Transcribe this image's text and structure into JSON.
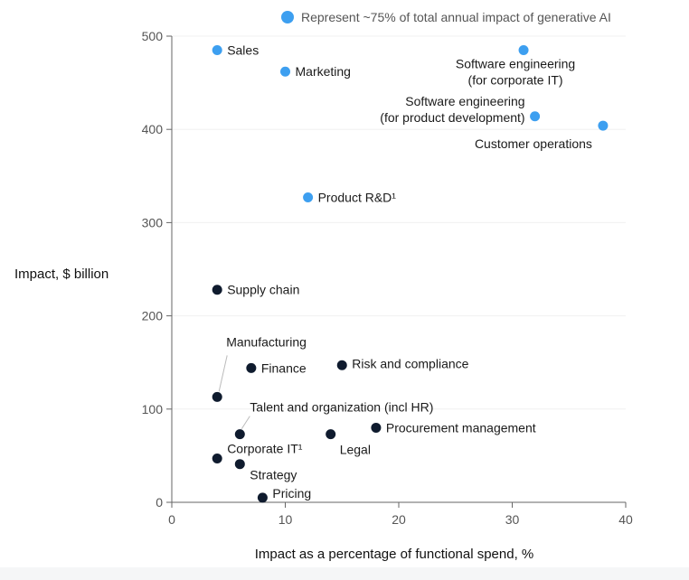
{
  "chart_data": {
    "type": "scatter",
    "xlabel": "Impact as a percentage of functional spend, %",
    "ylabel": "Impact, $ billion",
    "xlim": [
      0,
      40
    ],
    "ylim": [
      0,
      500
    ],
    "x_ticks": [
      "0",
      "10",
      "20",
      "30",
      "40"
    ],
    "y_ticks": [
      "0",
      "100",
      "200",
      "300",
      "400",
      "500"
    ],
    "legend": {
      "label": "Represent ~75% of total annual impact of generative AI",
      "color": "#3d9ff0",
      "placement": "top-right"
    },
    "colors": {
      "highlight": "#3d9ff0",
      "other": "#0f1b2e"
    },
    "points": [
      {
        "label": [
          "Sales"
        ],
        "x": 4,
        "y": 485,
        "highlight": true
      },
      {
        "label": [
          "Marketing"
        ],
        "x": 10,
        "y": 462,
        "highlight": true
      },
      {
        "label": [
          "Software engineering",
          "(for corporate IT)"
        ],
        "x": 31,
        "y": 485,
        "highlight": true
      },
      {
        "label": [
          "Software engineering",
          "(for product development)"
        ],
        "x": 32,
        "y": 414,
        "highlight": true
      },
      {
        "label": [
          "Customer operations"
        ],
        "x": 38,
        "y": 404,
        "highlight": true
      },
      {
        "label": [
          "Product R&D¹"
        ],
        "x": 12,
        "y": 327,
        "highlight": true
      },
      {
        "label": [
          "Supply chain"
        ],
        "x": 4,
        "y": 228,
        "highlight": false
      },
      {
        "label": [
          "Manufacturing"
        ],
        "x": 4,
        "y": 113,
        "highlight": false
      },
      {
        "label": [
          "Finance"
        ],
        "x": 7,
        "y": 144,
        "highlight": false
      },
      {
        "label": [
          "Risk and compliance"
        ],
        "x": 15,
        "y": 147,
        "highlight": false
      },
      {
        "label": [
          "Talent and organization (incl HR)"
        ],
        "x": 6,
        "y": 73,
        "highlight": false
      },
      {
        "label": [
          "Procurement management"
        ],
        "x": 18,
        "y": 80,
        "highlight": false
      },
      {
        "label": [
          "Legal"
        ],
        "x": 14,
        "y": 73,
        "highlight": false
      },
      {
        "label": [
          "Corporate IT¹"
        ],
        "x": 4,
        "y": 47,
        "highlight": false
      },
      {
        "label": [
          "Strategy"
        ],
        "x": 6,
        "y": 41,
        "highlight": false
      },
      {
        "label": [
          "Pricing"
        ],
        "x": 8,
        "y": 5,
        "highlight": false
      }
    ]
  }
}
